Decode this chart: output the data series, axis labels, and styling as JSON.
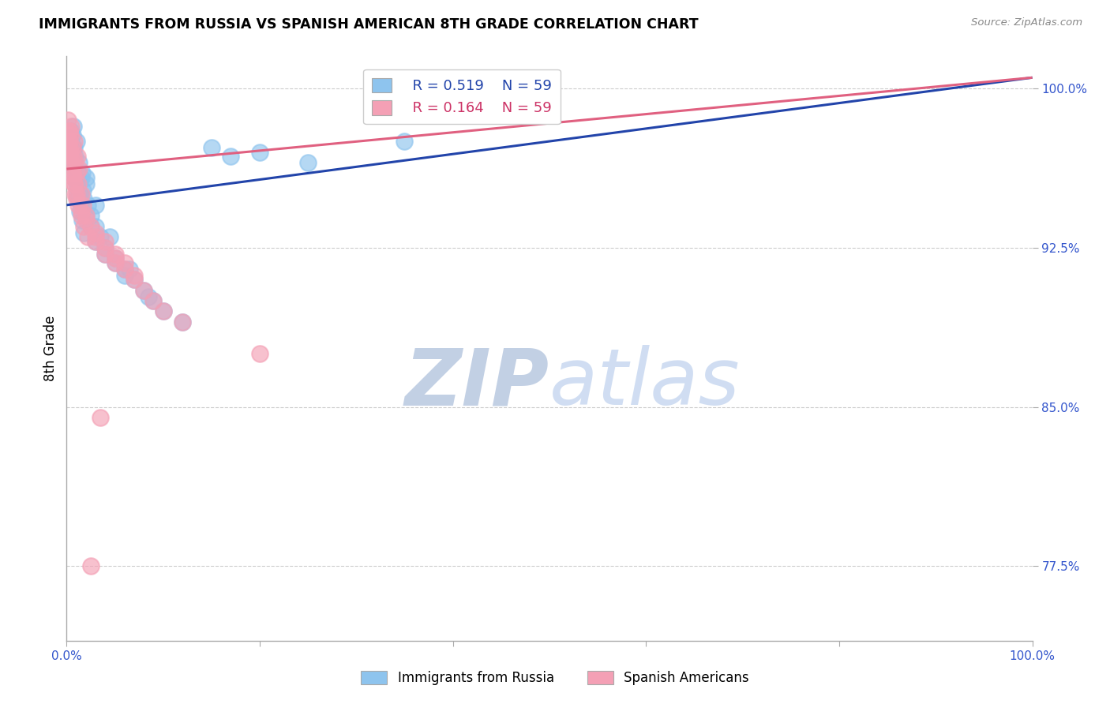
{
  "title": "IMMIGRANTS FROM RUSSIA VS SPANISH AMERICAN 8TH GRADE CORRELATION CHART",
  "source_text": "Source: ZipAtlas.com",
  "ylabel": "8th Grade",
  "xlim": [
    0.0,
    100.0
  ],
  "ylim": [
    74.0,
    101.5
  ],
  "yticks": [
    77.5,
    85.0,
    92.5,
    100.0
  ],
  "ytick_labels": [
    "77.5%",
    "85.0%",
    "92.5%",
    "100.0%"
  ],
  "xticks": [
    0.0,
    20.0,
    40.0,
    60.0,
    80.0,
    100.0
  ],
  "xtick_labels": [
    "0.0%",
    "",
    "",
    "",
    "",
    "100.0%"
  ],
  "legend_R1": "R = 0.519",
  "legend_N1": "N = 59",
  "legend_R2": "R = 0.164",
  "legend_N2": "N = 59",
  "color_russia": "#8EC4EE",
  "color_spanish": "#F4A0B5",
  "color_line_russia": "#2244AA",
  "color_line_spanish": "#E06080",
  "watermark_color": "#C8D8F0",
  "russia_trendline": [
    0.0,
    94.8,
    100.0,
    100.0
  ],
  "spanish_trendline": [
    0.0,
    96.2,
    100.0,
    100.0
  ],
  "russia_x": [
    0.2,
    0.3,
    0.4,
    0.5,
    0.6,
    0.7,
    0.8,
    0.9,
    1.0,
    1.1,
    1.2,
    1.3,
    1.4,
    1.5,
    1.6,
    1.7,
    1.8,
    2.0,
    2.2,
    2.5,
    3.0,
    3.5,
    4.0,
    5.0,
    6.0,
    7.0,
    8.0,
    9.0,
    10.0,
    12.0,
    0.3,
    0.4,
    0.5,
    0.6,
    0.7,
    0.8,
    0.9,
    1.0,
    1.1,
    1.2,
    1.4,
    1.6,
    1.8,
    2.0,
    2.5,
    3.0,
    4.0,
    5.0,
    6.0,
    15.0,
    17.0,
    20.0,
    25.0,
    35.0,
    2.0,
    3.0,
    4.5,
    6.5,
    8.5
  ],
  "russia_y": [
    96.5,
    97.0,
    97.5,
    98.0,
    97.8,
    98.2,
    97.2,
    96.8,
    97.5,
    96.0,
    95.5,
    96.5,
    95.0,
    95.8,
    96.0,
    95.2,
    94.8,
    95.5,
    94.5,
    94.0,
    93.5,
    93.0,
    92.5,
    92.0,
    91.5,
    91.0,
    90.5,
    90.0,
    89.5,
    89.0,
    98.0,
    97.5,
    96.8,
    97.2,
    96.5,
    95.8,
    96.2,
    95.5,
    95.0,
    94.8,
    94.2,
    93.8,
    93.2,
    94.0,
    93.5,
    92.8,
    92.2,
    91.8,
    91.2,
    97.2,
    96.8,
    97.0,
    96.5,
    97.5,
    95.8,
    94.5,
    93.0,
    91.5,
    90.2
  ],
  "spanish_x": [
    0.2,
    0.3,
    0.4,
    0.5,
    0.6,
    0.7,
    0.8,
    0.9,
    1.0,
    1.1,
    1.2,
    1.3,
    1.5,
    1.7,
    2.0,
    2.5,
    3.0,
    4.0,
    5.0,
    6.0,
    7.0,
    8.0,
    9.0,
    10.0,
    12.0,
    0.3,
    0.4,
    0.5,
    0.6,
    0.7,
    0.8,
    0.9,
    1.0,
    1.2,
    1.5,
    1.8,
    2.2,
    3.0,
    4.0,
    5.0,
    0.1,
    0.2,
    0.3,
    0.4,
    0.5,
    0.6,
    0.8,
    1.0,
    1.5,
    2.0,
    3.0,
    4.0,
    5.0,
    6.0,
    7.0,
    20.0,
    3.5,
    40.0,
    2.5
  ],
  "spanish_y": [
    97.5,
    98.0,
    97.8,
    98.2,
    97.2,
    96.8,
    97.5,
    96.5,
    96.0,
    96.8,
    95.5,
    96.2,
    95.0,
    94.5,
    94.0,
    93.5,
    93.0,
    92.5,
    92.0,
    91.5,
    91.0,
    90.5,
    90.0,
    89.5,
    89.0,
    97.2,
    96.8,
    96.5,
    96.0,
    95.8,
    95.5,
    95.0,
    94.8,
    94.5,
    94.0,
    93.5,
    93.0,
    92.8,
    92.2,
    91.8,
    98.5,
    98.0,
    97.5,
    97.0,
    96.5,
    96.0,
    95.5,
    95.0,
    94.2,
    93.8,
    93.2,
    92.8,
    92.2,
    91.8,
    91.2,
    87.5,
    84.5,
    99.8,
    77.5
  ]
}
